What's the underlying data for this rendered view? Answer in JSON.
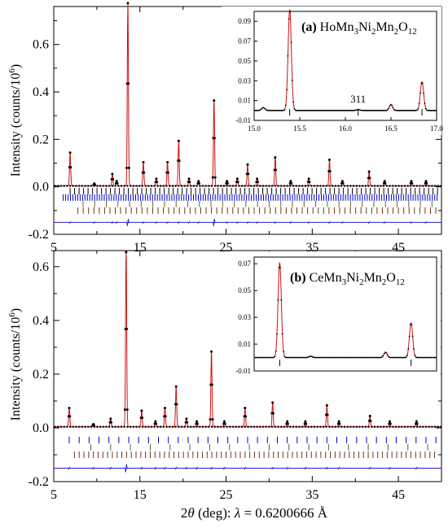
{
  "figure": {
    "xlabel_prefix": "2",
    "xlabel_theta": "θ",
    "xlabel_mid": " (deg): ",
    "xlabel_lambda": "λ",
    "xlabel_value": " = 0.6200666 Å"
  },
  "chart_data": [
    {
      "type": "line",
      "panel": "(a)",
      "title_parts": {
        "label": "(a)",
        "pre": "HoMn",
        "s1": "3",
        "t1": "Ni",
        "s2": "2",
        "t2": "Mn",
        "s3": "2",
        "t3": "O",
        "s4": "12"
      },
      "ylabel": "Intensity (counts/10",
      "ylabel_exp": "6",
      "ylabel_close": ")",
      "xlim": [
        5,
        50
      ],
      "ylim": [
        -0.2,
        0.76
      ],
      "xticks": [
        "5",
        "15",
        "25",
        "35",
        "45"
      ],
      "yticks": [
        "-0.2",
        "0.0",
        "0.2",
        "0.4",
        "0.6"
      ],
      "peaks": [
        {
          "x": 6.9,
          "y": 0.14
        },
        {
          "x": 9.7,
          "y": 0.01
        },
        {
          "x": 11.8,
          "y": 0.05
        },
        {
          "x": 12.3,
          "y": 0.02
        },
        {
          "x": 13.6,
          "y": 0.77
        },
        {
          "x": 15.4,
          "y": 0.1
        },
        {
          "x": 16.9,
          "y": 0.03
        },
        {
          "x": 18.2,
          "y": 0.1
        },
        {
          "x": 19.5,
          "y": 0.19
        },
        {
          "x": 20.7,
          "y": 0.03
        },
        {
          "x": 21.8,
          "y": 0.02
        },
        {
          "x": 23.6,
          "y": 0.36
        },
        {
          "x": 25.1,
          "y": 0.02
        },
        {
          "x": 26.3,
          "y": 0.03
        },
        {
          "x": 27.5,
          "y": 0.09
        },
        {
          "x": 28.6,
          "y": 0.03
        },
        {
          "x": 30.7,
          "y": 0.12
        },
        {
          "x": 32.5,
          "y": 0.02
        },
        {
          "x": 34.6,
          "y": 0.03
        },
        {
          "x": 37.0,
          "y": 0.11
        },
        {
          "x": 38.5,
          "y": 0.02
        },
        {
          "x": 41.6,
          "y": 0.06
        },
        {
          "x": 43.4,
          "y": 0.02
        },
        {
          "x": 46.5,
          "y": 0.02
        },
        {
          "x": 48.2,
          "y": 0.02
        }
      ],
      "tick_rows": [
        {
          "color": "#000000",
          "y": -0.018,
          "start": 6.9,
          "step": 0.52
        },
        {
          "color": "#0000cc",
          "y": -0.045,
          "start": 6.1,
          "step": 0.28
        },
        {
          "color": "#6b6b1a",
          "y": -0.072,
          "start": 8.4,
          "step": 1.35
        },
        {
          "color": "#6b3a1a",
          "y": -0.1,
          "start": 7.8,
          "step": 0.62
        }
      ],
      "difference_y": -0.15,
      "inset": {
        "xlim": [
          15.0,
          17.0
        ],
        "ylim": [
          -0.01,
          0.1
        ],
        "xticks": [
          "15.0",
          "15.5",
          "16.0",
          "16.5",
          "17.0"
        ],
        "yticks": [
          "-0.01",
          "0.01",
          "0.03",
          "0.05",
          "0.07",
          "0.09"
        ],
        "annotation": "311",
        "annotation_x": 16.14,
        "peaks": [
          {
            "x": 15.1,
            "y": 0.003
          },
          {
            "x": 15.39,
            "y": 0.102
          },
          {
            "x": 16.14,
            "y": 0.001
          },
          {
            "x": 16.5,
            "y": 0.006
          },
          {
            "x": 16.84,
            "y": 0.029
          }
        ],
        "ref_ticks": [
          15.39,
          16.14,
          16.84
        ]
      }
    },
    {
      "type": "line",
      "panel": "(b)",
      "title_parts": {
        "label": "(b)",
        "pre": "CeMn",
        "s1": "3",
        "t1": "Ni",
        "s2": "2",
        "t2": "Mn",
        "s3": "2",
        "t3": "O",
        "s4": "12"
      },
      "ylabel": "Intensity (counts/10",
      "ylabel_exp": "6",
      "ylabel_close": ")",
      "xlim": [
        5,
        50
      ],
      "ylim": [
        -0.2,
        0.66
      ],
      "xticks": [
        "5",
        "15",
        "25",
        "35",
        "45"
      ],
      "yticks": [
        "-0.2",
        "0.0",
        "0.2",
        "0.4",
        "0.6"
      ],
      "peaks": [
        {
          "x": 6.8,
          "y": 0.07
        },
        {
          "x": 9.6,
          "y": 0.01
        },
        {
          "x": 11.6,
          "y": 0.03
        },
        {
          "x": 13.4,
          "y": 0.65
        },
        {
          "x": 15.2,
          "y": 0.06
        },
        {
          "x": 16.8,
          "y": 0.02
        },
        {
          "x": 17.9,
          "y": 0.07
        },
        {
          "x": 19.2,
          "y": 0.15
        },
        {
          "x": 20.4,
          "y": 0.03
        },
        {
          "x": 21.6,
          "y": 0.02
        },
        {
          "x": 23.3,
          "y": 0.28
        },
        {
          "x": 24.8,
          "y": 0.02
        },
        {
          "x": 27.2,
          "y": 0.07
        },
        {
          "x": 30.4,
          "y": 0.09
        },
        {
          "x": 32.1,
          "y": 0.02
        },
        {
          "x": 34.2,
          "y": 0.02
        },
        {
          "x": 36.7,
          "y": 0.08
        },
        {
          "x": 38.1,
          "y": 0.02
        },
        {
          "x": 41.7,
          "y": 0.04
        },
        {
          "x": 44.0,
          "y": 0.02
        },
        {
          "x": 47.1,
          "y": 0.02
        }
      ],
      "tick_rows": [
        {
          "color": "#0000cc",
          "y": -0.045,
          "start": 6.8,
          "step": 1.15
        },
        {
          "color": "#2e7d2e",
          "y": -0.072,
          "start": 9.3,
          "step": 2.3
        },
        {
          "color": "#6b3a1a",
          "y": -0.1,
          "start": 7.4,
          "step": 0.55
        }
      ],
      "difference_y": -0.15,
      "inset": {
        "xlim": [
          15.0,
          17.0
        ],
        "ylim": [
          -0.01,
          0.075
        ],
        "xticks": [],
        "yticks": [
          "-0.01",
          "0.01",
          "0.03",
          "0.05",
          "0.07"
        ],
        "annotation": "",
        "annotation_x": 16.0,
        "peaks": [
          {
            "x": 15.28,
            "y": 0.071
          },
          {
            "x": 15.62,
            "y": 0.001
          },
          {
            "x": 16.44,
            "y": 0.004
          },
          {
            "x": 16.72,
            "y": 0.026
          }
        ],
        "ref_ticks": [
          15.28,
          16.72
        ]
      }
    }
  ]
}
